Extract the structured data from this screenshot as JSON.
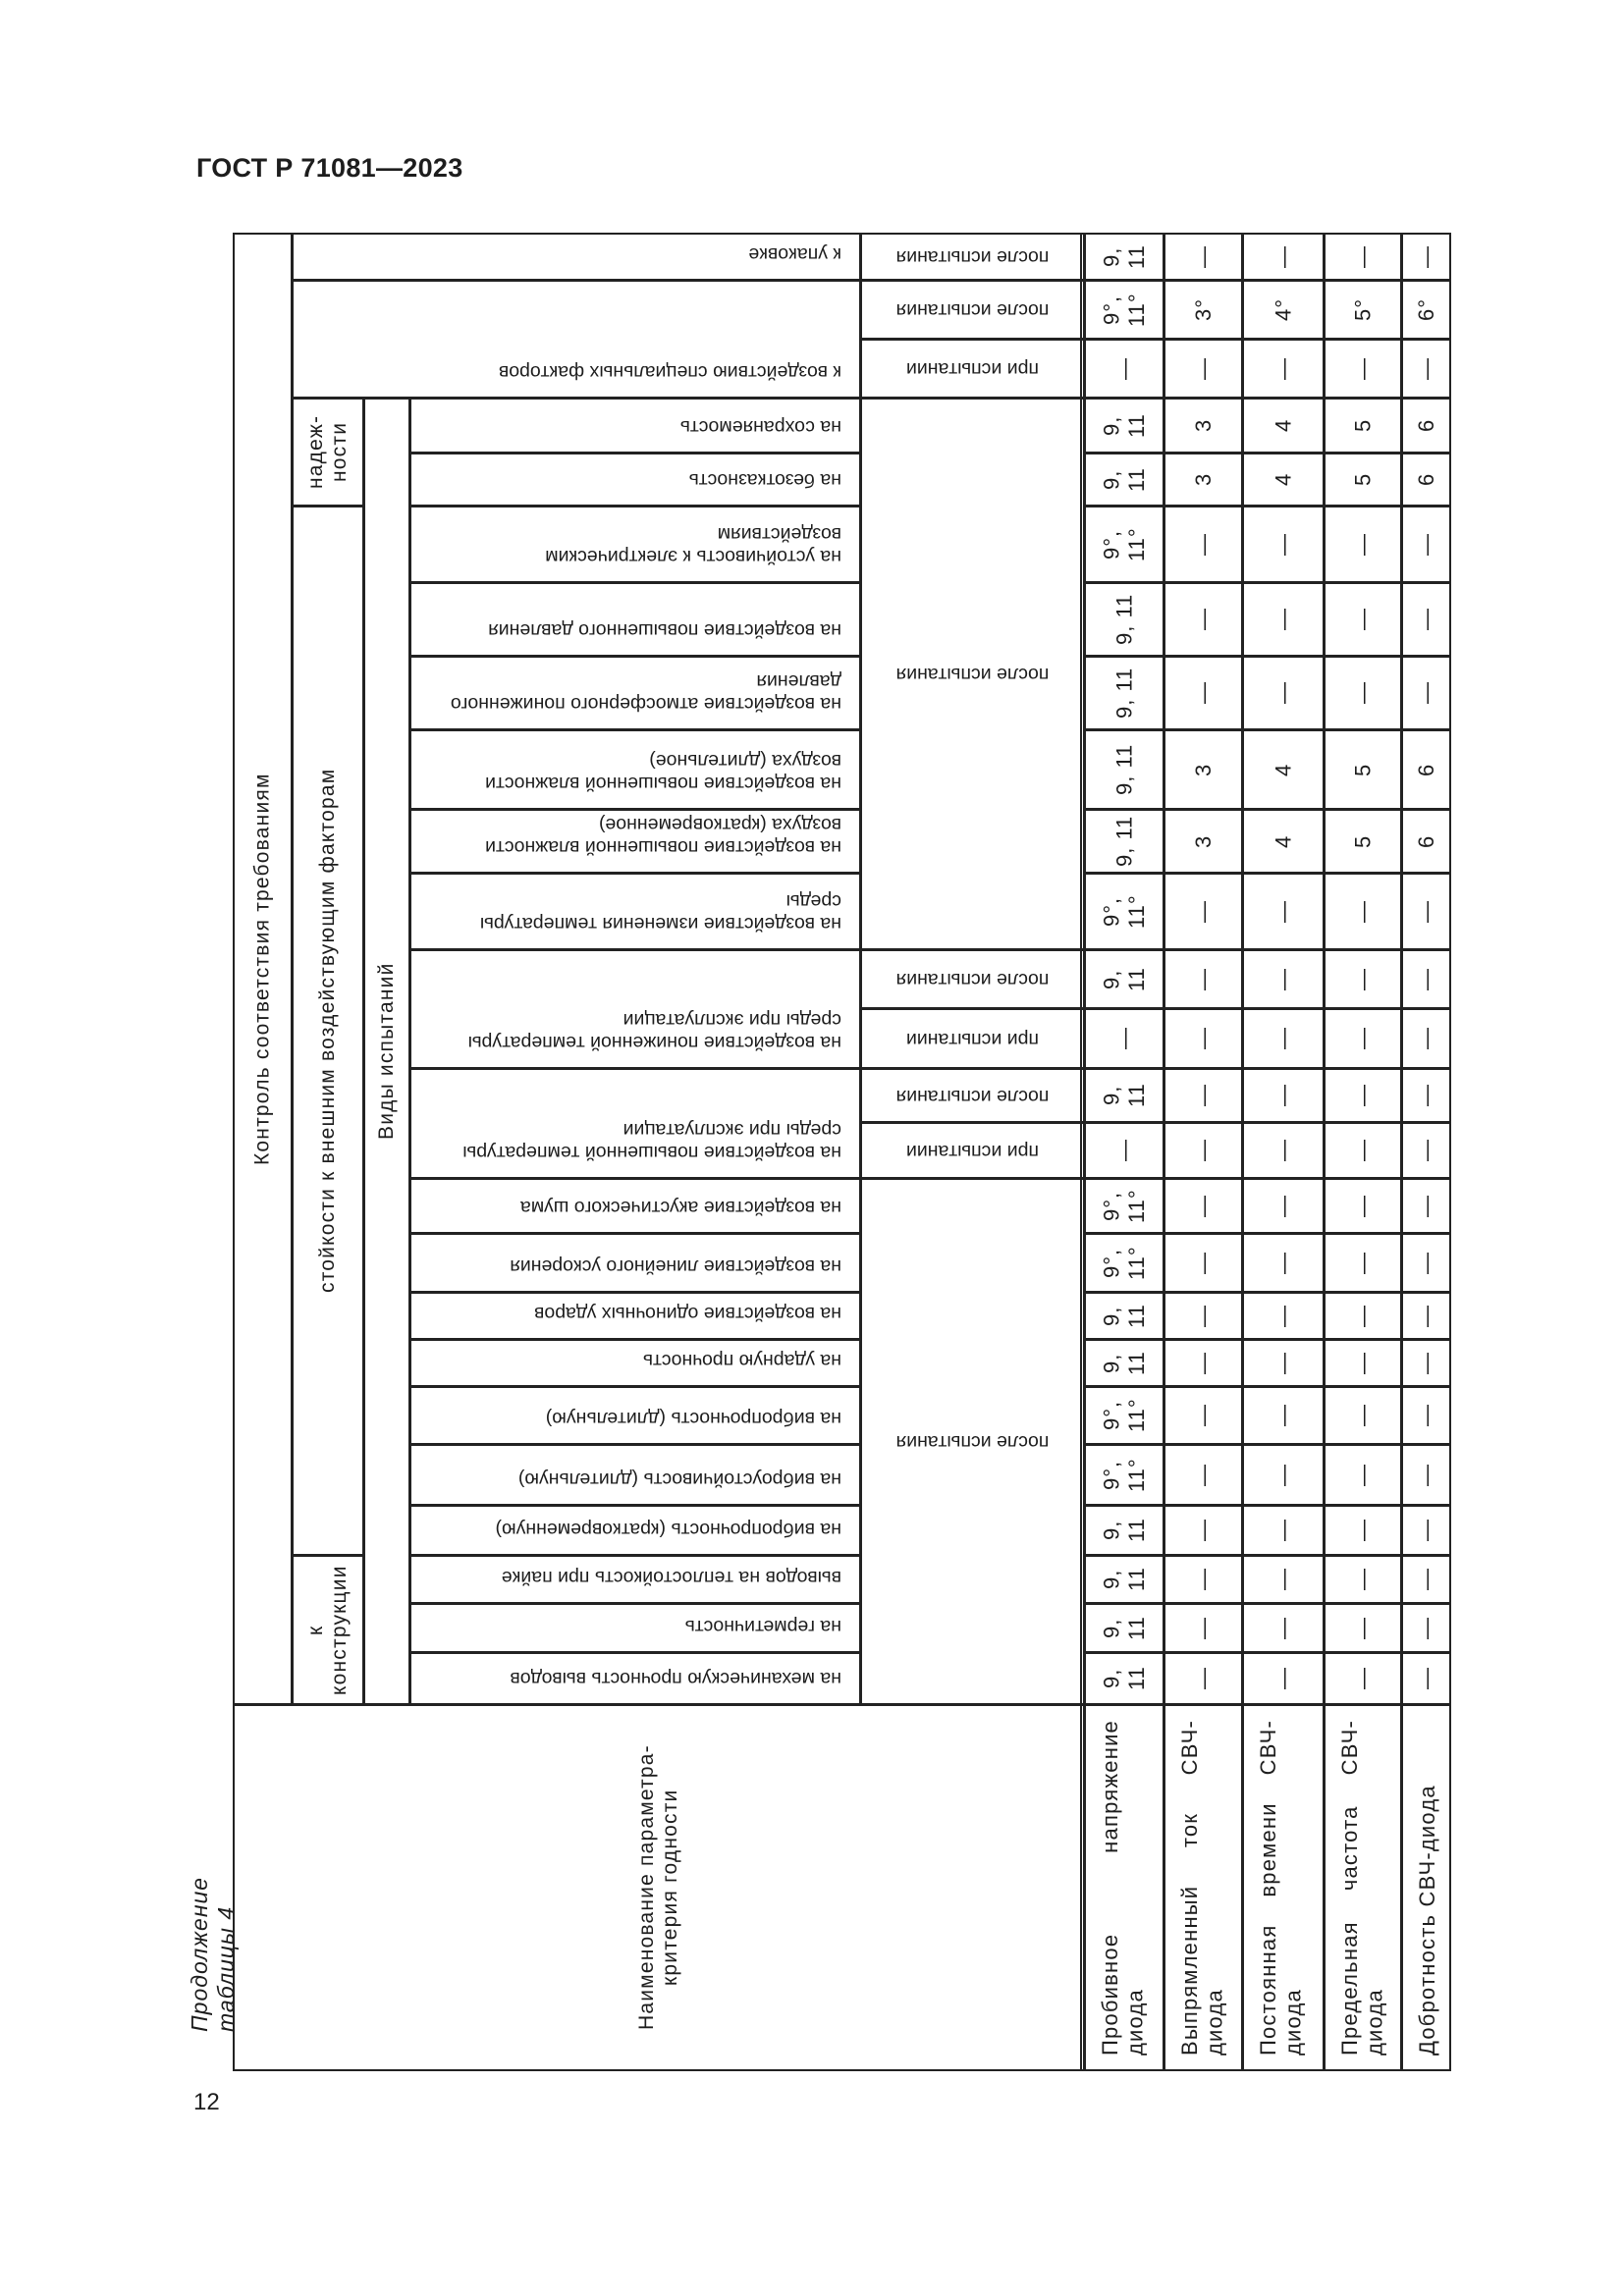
{
  "header": {
    "doc_code": "ГОСТ Р 71081—2023",
    "caption": "Продолжение таблицы 4",
    "page_number": "12"
  },
  "table": {
    "control_header": "Контроль соответствия требованиям",
    "groups": {
      "reliability": "надеж-ности",
      "resistance": "стойкости к внешним воздействующим факторам",
      "construction": "к конструкции"
    },
    "test_types_label": "Виды испытаний",
    "param_header": "Наименование параметра-критерия годности",
    "params": [
      "Пробивное напряжение диода",
      "Выпрямленный ток СВЧ-диода",
      "Постоянная времени СВЧ-диода",
      "Предельная частота СВЧ-диода",
      "Добротность СВЧ-диода"
    ],
    "tests": [
      "к упаковке",
      "к воздействию специальных факторов",
      "на сохраняемость",
      "на безотказность",
      "на устойчивость к электрическим воздействиям",
      "на воздействие повышенного давления",
      "на воздействие атмосферного пониженного давления",
      "на воздействие повышенной влажности воздуха (длительное)",
      "на воздействие повышенной влажности воздуха (кратковременное)",
      "на воздействие изменения температуры среды",
      "на воздействие пониженной температуры среды при эксплуатации",
      "на воздействие повышенной температуры среды при эксплуатации",
      "на воздействие акустического шума",
      "на воздействие линейного ускорения",
      "на воздействие одиночных ударов",
      "на ударную прочность",
      "на вибропрочность (длительную)",
      "на виброустойчивость (длительную)",
      "на вибропрочность (кратковременную)",
      "выводов на теплостойкость при пайке",
      "на герметичность",
      "на механическую прочность выводов"
    ],
    "phases": [
      "после испытания",
      "после испытания",
      "при испытании",
      "после испытания",
      "после испытания",
      "при испытании",
      "после испытания",
      "при испытании",
      "после испытания"
    ],
    "rows": [
      {
        "values": [
          "9, 11",
          "—",
          "—",
          "—",
          "—"
        ]
      },
      {
        "values": [
          "9°, 11°",
          "3°",
          "4°",
          "5°",
          "6°"
        ]
      },
      {
        "values": [
          "—",
          "—",
          "—",
          "—",
          "—"
        ]
      },
      {
        "values": [
          "9, 11",
          "3",
          "4",
          "5",
          "6"
        ]
      },
      {
        "values": [
          "9, 11",
          "3",
          "4",
          "5",
          "6"
        ]
      },
      {
        "values": [
          "9°, 11°",
          "—",
          "—",
          "—",
          "—"
        ]
      },
      {
        "values": [
          "9, 11",
          "—",
          "—",
          "—",
          "—"
        ]
      },
      {
        "values": [
          "9, 11",
          "—",
          "—",
          "—",
          "—"
        ]
      },
      {
        "values": [
          "9, 11",
          "3",
          "4",
          "5",
          "6"
        ]
      },
      {
        "values": [
          "9, 11",
          "3",
          "4",
          "5",
          "6"
        ]
      },
      {
        "values": [
          "9°, 11°",
          "—",
          "—",
          "—",
          "—"
        ]
      },
      {
        "values": [
          "9, 11",
          "—",
          "—",
          "—",
          "—"
        ]
      },
      {
        "values": [
          "—",
          "—",
          "—",
          "—",
          "—"
        ]
      },
      {
        "values": [
          "9, 11",
          "—",
          "—",
          "—",
          "—"
        ]
      },
      {
        "values": [
          "—",
          "—",
          "—",
          "—",
          "—"
        ]
      },
      {
        "values": [
          "9°, 11°",
          "—",
          "—",
          "—",
          "—"
        ]
      },
      {
        "values": [
          "9°, 11°",
          "—",
          "—",
          "—",
          "—"
        ]
      },
      {
        "values": [
          "9, 11",
          "—",
          "—",
          "—",
          "—"
        ]
      },
      {
        "values": [
          "9, 11",
          "—",
          "—",
          "—",
          "—"
        ]
      },
      {
        "values": [
          "9°, 11°",
          "—",
          "—",
          "—",
          "—"
        ]
      },
      {
        "values": [
          "9°, 11°",
          "—",
          "—",
          "—",
          "—"
        ]
      },
      {
        "values": [
          "9, 11",
          "—",
          "—",
          "—",
          "—"
        ]
      },
      {
        "values": [
          "9, 11",
          "—",
          "—",
          "—",
          "—"
        ]
      },
      {
        "values": [
          "9, 11",
          "—",
          "—",
          "—",
          "—"
        ]
      },
      {
        "values": [
          "9, 11",
          "—",
          "—",
          "—",
          "—"
        ]
      }
    ]
  }
}
